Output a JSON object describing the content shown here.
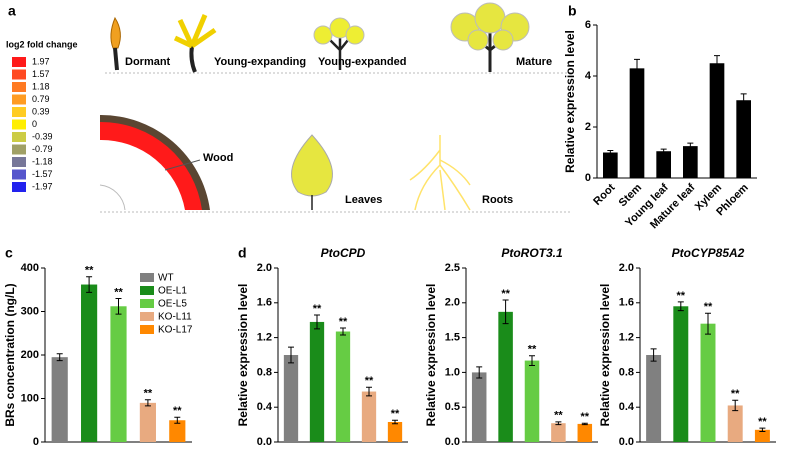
{
  "diagram": {
    "panel": "a",
    "legend_title": "log2 fold change",
    "legend": [
      {
        "label": 1.97,
        "color": "#ff1a1a"
      },
      {
        "label": 1.57,
        "color": "#ff4a22"
      },
      {
        "label": 1.18,
        "color": "#ff7a22"
      },
      {
        "label": 0.79,
        "color": "#ff9c22"
      },
      {
        "label": 0.39,
        "color": "#ffcc22"
      },
      {
        "label": 0,
        "color": "#ffee00"
      },
      {
        "label": -0.39,
        "color": "#cccc44"
      },
      {
        "label": -0.79,
        "color": "#a0a066"
      },
      {
        "label": -1.18,
        "color": "#777799"
      },
      {
        "label": -1.57,
        "color": "#5555cc"
      },
      {
        "label": -1.97,
        "color": "#2222ee"
      }
    ],
    "stages": [
      "Dormant",
      "Young-expanding",
      "Young-expanded",
      "Mature"
    ],
    "tissues": [
      "Wood",
      "Leaves",
      "Roots"
    ]
  },
  "chart_data": [
    {
      "type": "bar",
      "panel": "b",
      "ylabel": "Relative expression level",
      "categories": [
        "Root",
        "Stem",
        "Young leaf",
        "Mature leaf",
        "Xylem",
        "Phloem"
      ],
      "values": [
        1.0,
        4.3,
        1.05,
        1.25,
        4.5,
        3.05
      ],
      "errors": [
        0.08,
        0.35,
        0.08,
        0.12,
        0.3,
        0.25
      ],
      "color": "#000000",
      "ylim": [
        0,
        6
      ],
      "yticks": [
        0,
        2,
        4,
        6
      ]
    },
    {
      "type": "bar",
      "panel": "c",
      "ylabel": "BRs concentration (ng/L)",
      "categories": [
        "WT",
        "OE-L1",
        "OE-L5",
        "KO-L11",
        "KO-L17"
      ],
      "values": [
        195,
        362,
        312,
        90,
        50
      ],
      "errors": [
        8,
        18,
        18,
        7,
        7
      ],
      "colors": [
        "#808080",
        "#1a8c1a",
        "#66cc44",
        "#e8aa80",
        "#ff8800"
      ],
      "significance": [
        null,
        "**",
        "**",
        "**",
        "**"
      ],
      "ylim": [
        0,
        400
      ],
      "yticks": [
        0,
        100,
        200,
        300,
        400
      ]
    },
    {
      "type": "bar",
      "panel": "d",
      "title": "PtoCPD",
      "ylabel": "Relative expression level",
      "values": [
        1.0,
        1.38,
        1.27,
        0.58,
        0.23
      ],
      "errors": [
        0.09,
        0.08,
        0.04,
        0.05,
        0.02
      ],
      "colors": [
        "#808080",
        "#1a8c1a",
        "#66cc44",
        "#e8aa80",
        "#ff8800"
      ],
      "significance": [
        null,
        "**",
        "**",
        "**",
        "**"
      ],
      "ylim": [
        0,
        2.0
      ],
      "yticks": [
        {
          "value": 0,
          "label": "0.0"
        },
        0.4,
        0.8,
        1.2,
        1.6,
        {
          "value": 2,
          "label": "2.0"
        }
      ]
    },
    {
      "type": "bar",
      "title": "PtoROT3.1",
      "ylabel": "Relative expression level",
      "values": [
        1.0,
        1.87,
        1.17,
        0.27,
        0.26
      ],
      "errors": [
        0.08,
        0.17,
        0.07,
        0.02,
        0.01
      ],
      "colors": [
        "#808080",
        "#1a8c1a",
        "#66cc44",
        "#e8aa80",
        "#ff8800"
      ],
      "significance": [
        null,
        "**",
        "**",
        "**",
        "**"
      ],
      "ylim": [
        0,
        2.5
      ],
      "yticks": [
        {
          "value": 0,
          "label": "0.0"
        },
        0.5,
        {
          "value": 1,
          "label": "1.0"
        },
        1.5,
        {
          "value": 2,
          "label": "2.0"
        },
        2.5
      ]
    },
    {
      "type": "bar",
      "title": "PtoCYP85A2",
      "ylabel": "Relative expression level",
      "values": [
        1.0,
        1.56,
        1.36,
        0.42,
        0.14
      ],
      "errors": [
        0.07,
        0.05,
        0.12,
        0.06,
        0.02
      ],
      "colors": [
        "#808080",
        "#1a8c1a",
        "#66cc44",
        "#e8aa80",
        "#ff8800"
      ],
      "significance": [
        null,
        "**",
        "**",
        "**",
        "**"
      ],
      "ylim": [
        0,
        2.0
      ],
      "yticks": [
        {
          "value": 0,
          "label": "0.0"
        },
        0.4,
        0.8,
        1.2,
        1.6,
        {
          "value": 2,
          "label": "2.0"
        }
      ]
    }
  ]
}
